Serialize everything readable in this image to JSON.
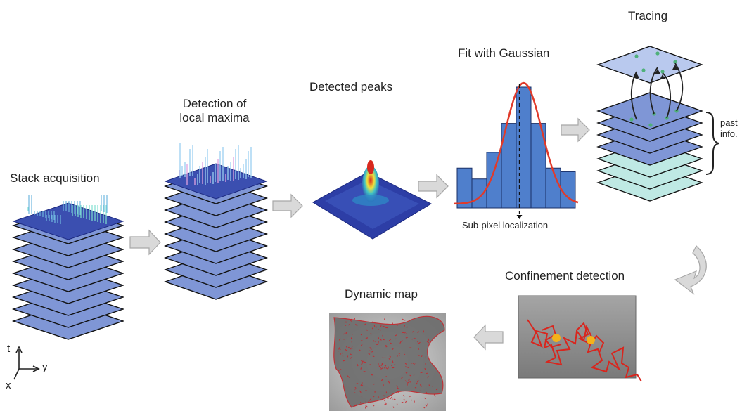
{
  "steps": {
    "stack_acquisition": "Stack acquisition",
    "local_maxima_line1": "Detection of",
    "local_maxima_line2": "local maxima",
    "detected_peaks": "Detected peaks",
    "fit_gaussian": "Fit with Gaussian",
    "subpixel": "Sub-pixel localization",
    "tracing": "Tracing",
    "past_info_line1": "past",
    "past_info_line2": "info.",
    "confinement": "Confinement detection",
    "dynamic_map": "Dynamic map"
  },
  "axes": {
    "t": "t",
    "y": "y",
    "x": "x"
  },
  "colors": {
    "layer_fill": "#7f96d6",
    "layer_dark": "#3b4fb0",
    "tracing_top": "#b9c9ee",
    "tracing_cyan": "#bfe9e4",
    "arrow_fill": "#d9d9d9",
    "gaussian_curve": "#e03a2a",
    "track_red": "#d9251d",
    "confined_yellow": "#f3b21a",
    "panel_grey": "#8d8d8d"
  },
  "histogram": {
    "type": "bar",
    "values": [
      0.33,
      0.24,
      0.46,
      0.7,
      1.0,
      0.7,
      0.33,
      0.3
    ],
    "gaussian_overlay": true
  }
}
